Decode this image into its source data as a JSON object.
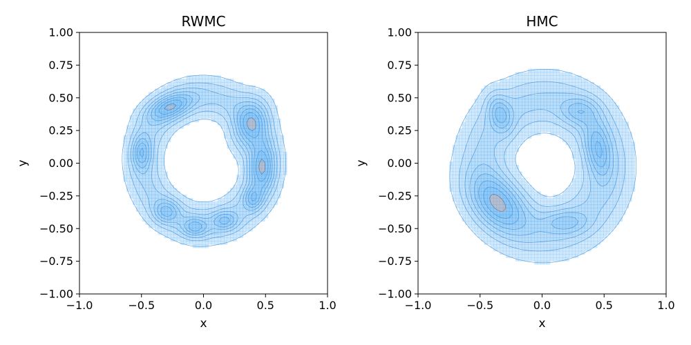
{
  "chart_data": [
    {
      "type": "density-contour",
      "title": "RWMC",
      "xlabel": "x",
      "ylabel": "y",
      "xlim": [
        -1.0,
        1.0
      ],
      "ylim": [
        -1.0,
        1.0
      ],
      "xticks": [
        -1.0,
        -0.5,
        0.0,
        0.5,
        1.0
      ],
      "xtick_labels": [
        "−1.0",
        "−0.5",
        "0.0",
        "0.5",
        "1.0"
      ],
      "yticks": [
        -1.0,
        -0.75,
        -0.5,
        -0.25,
        0.0,
        0.25,
        0.5,
        0.75,
        1.0
      ],
      "ytick_labels": [
        "−1.00",
        "−0.75",
        "−0.50",
        "−0.25",
        "0.00",
        "0.25",
        "0.50",
        "0.75",
        "1.00"
      ],
      "grid": false,
      "fill_color": "#4aa6f0",
      "line_color": "#3c8fd8",
      "ring": {
        "outer_radius": 0.64,
        "inner_radius": 0.33,
        "center": [
          0.0,
          0.02
        ],
        "levels": 8
      },
      "modes": [
        {
          "x": -0.27,
          "y": 0.43,
          "rx": 0.13,
          "ry": 0.06,
          "angle": 20,
          "weight": 1.0
        },
        {
          "x": 0.38,
          "y": 0.3,
          "rx": 0.09,
          "ry": 0.13,
          "angle": -20,
          "weight": 1.0
        },
        {
          "x": 0.47,
          "y": -0.03,
          "rx": 0.07,
          "ry": 0.13,
          "angle": 0,
          "weight": 1.0
        },
        {
          "x": -0.5,
          "y": 0.08,
          "rx": 0.05,
          "ry": 0.09,
          "angle": 0,
          "weight": 0.8
        },
        {
          "x": 0.4,
          "y": -0.27,
          "rx": 0.05,
          "ry": 0.06,
          "angle": 0,
          "weight": 0.7
        },
        {
          "x": -0.3,
          "y": -0.37,
          "rx": 0.07,
          "ry": 0.06,
          "angle": 0,
          "weight": 0.7
        },
        {
          "x": -0.07,
          "y": -0.49,
          "rx": 0.07,
          "ry": 0.05,
          "angle": 0,
          "weight": 0.75
        },
        {
          "x": 0.17,
          "y": -0.44,
          "rx": 0.07,
          "ry": 0.05,
          "angle": 0,
          "weight": 0.65
        }
      ]
    },
    {
      "type": "density-contour",
      "title": "HMC",
      "xlabel": "x",
      "ylabel": "y",
      "xlim": [
        -1.0,
        1.0
      ],
      "ylim": [
        -1.0,
        1.0
      ],
      "xticks": [
        -1.0,
        -0.5,
        0.0,
        0.5,
        1.0
      ],
      "xtick_labels": [
        "−1.0",
        "−0.5",
        "0.0",
        "0.5",
        "1.0"
      ],
      "yticks": [
        -1.0,
        -0.75,
        -0.5,
        -0.25,
        0.0,
        0.25,
        0.5,
        0.75,
        1.0
      ],
      "ytick_labels": [
        "−1.00",
        "−0.75",
        "−0.50",
        "−0.25",
        "0.00",
        "0.25",
        "0.50",
        "0.75",
        "1.00"
      ],
      "grid": false,
      "fill_color": "#4aa6f0",
      "line_color": "#3c8fd8",
      "ring": {
        "outer_radius": 0.72,
        "inner_radius": 0.27,
        "center": [
          0.02,
          -0.02
        ],
        "levels": 8
      },
      "modes": [
        {
          "x": -0.35,
          "y": -0.3,
          "rx": 0.18,
          "ry": 0.12,
          "angle": -40,
          "weight": 1.0
        },
        {
          "x": -0.34,
          "y": 0.38,
          "rx": 0.06,
          "ry": 0.1,
          "angle": 20,
          "weight": 0.7
        },
        {
          "x": 0.45,
          "y": 0.1,
          "rx": 0.07,
          "ry": 0.15,
          "angle": 10,
          "weight": 0.8
        },
        {
          "x": 0.18,
          "y": -0.45,
          "rx": 0.12,
          "ry": 0.06,
          "angle": 0,
          "weight": 0.5
        },
        {
          "x": 0.3,
          "y": 0.4,
          "rx": 0.1,
          "ry": 0.07,
          "angle": 0,
          "weight": 0.5
        }
      ]
    }
  ]
}
